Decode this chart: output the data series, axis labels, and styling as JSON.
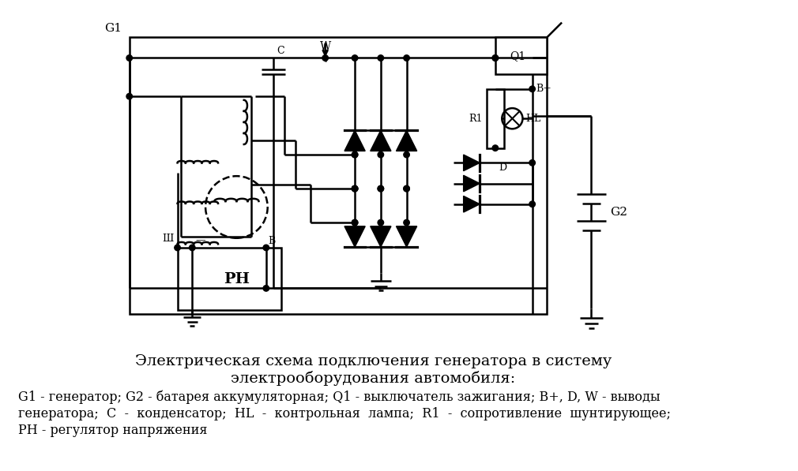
{
  "title_line1": "Электрическая схема подключения генератора в систему",
  "title_line2": "электрооборудования автомобиля:",
  "desc_line1": "G1 - генератор; G2 - батарея аккумуляторная; Q1 - выключатель зажигания; B+, D, W - выводы",
  "desc_line2": "генератора;  С  -  конденсатор;  HL  -  контрольная  лампа;  R1  -  сопротивление  шунтирующее;",
  "desc_line3": "РН - регулятор напряжения",
  "bg_color": "#ffffff",
  "lw": 1.8,
  "title_fontsize": 14,
  "desc_fontsize": 11.5
}
